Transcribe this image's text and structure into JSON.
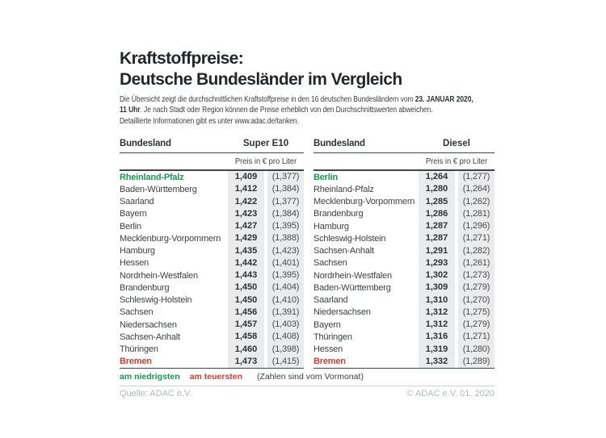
{
  "page": {
    "title_line1": "Kraftstoffpreise:",
    "title_line2": "Deutsche Bundesländer im Vergleich",
    "intro_line1_text": "Die Übersicht zeigt die durchschnittlichen Kraftstoffpreise in den 16 deutschen Bundesländern vom ",
    "intro_line1_bold": "23. JANUAR 2020,",
    "intro_line2_bold": "11 Uhr",
    "intro_line2_text": ". Je nach Stadt oder Region können die Preise erheblich von den Durchschnittswerten abweichen.",
    "intro_line3_text": "Detaillierte Informationen gibt es unter www.adac.de/tanken."
  },
  "colors": {
    "green_cheapest": "#169a4f",
    "red_most_expensive": "#cf4030",
    "column_shading": "#e9ebec",
    "footer_gray": "#b3b9bc"
  },
  "legend": {
    "cheapest_label": "am niedrigsten",
    "most_expensive_label": "am teuersten",
    "note": "(Zahlen sind vom Vormonat)"
  },
  "footer": {
    "source": "Quelle: ADAC e.V.",
    "copyright": "© ADAC e.V. 01. 2020"
  },
  "chart_data": [
    {
      "type": "table",
      "title": "Super E10",
      "state_column_header": "Bundesland",
      "unit_subheader": "Preis in € pro Liter",
      "note": "values in € per liter, parentheses = previous month",
      "rows": [
        {
          "land": "Rheinland-Pfalz",
          "price": "1,409",
          "prev": "(1,377)",
          "highlight": "min"
        },
        {
          "land": "Baden-Württemberg",
          "price": "1,412",
          "prev": "(1,384)"
        },
        {
          "land": "Saarland",
          "price": "1,422",
          "prev": "(1,377)"
        },
        {
          "land": "Bayern",
          "price": "1,423",
          "prev": "(1,384)"
        },
        {
          "land": "Berlin",
          "price": "1,427",
          "prev": "(1,395)"
        },
        {
          "land": "Mecklenburg-Vorpommern",
          "price": "1,429",
          "prev": "(1,388)"
        },
        {
          "land": "Hamburg",
          "price": "1,435",
          "prev": "(1,423)"
        },
        {
          "land": "Hessen",
          "price": "1,442",
          "prev": "(1,401)"
        },
        {
          "land": "Nordrhein-Westfalen",
          "price": "1,443",
          "prev": "(1,395)"
        },
        {
          "land": "Brandenburg",
          "price": "1,450",
          "prev": "(1,404)"
        },
        {
          "land": "Schleswig-Holstein",
          "price": "1,450",
          "prev": "(1,410)"
        },
        {
          "land": "Sachsen",
          "price": "1,456",
          "prev": "(1,391)"
        },
        {
          "land": "Niedersachsen",
          "price": "1,457",
          "prev": "(1,403)"
        },
        {
          "land": "Sachsen-Anhalt",
          "price": "1,458",
          "prev": "(1,408)"
        },
        {
          "land": "Thüringen",
          "price": "1,460",
          "prev": "(1,398)"
        },
        {
          "land": "Bremen",
          "price": "1,473",
          "prev": "(1,415)",
          "highlight": "max"
        }
      ]
    },
    {
      "type": "table",
      "title": "Diesel",
      "state_column_header": "Bundesland",
      "unit_subheader": "Preis in € pro Liter",
      "note": "values in € per liter, parentheses = previous month",
      "rows": [
        {
          "land": "Berlin",
          "price": "1,264",
          "prev": "(1,277)",
          "highlight": "min"
        },
        {
          "land": "Rheinland-Pfalz",
          "price": "1,280",
          "prev": "(1,264)"
        },
        {
          "land": "Mecklenburg-Vorpommern",
          "price": "1,285",
          "prev": "(1,262)"
        },
        {
          "land": "Brandenburg",
          "price": "1,286",
          "prev": "(1,281)"
        },
        {
          "land": "Hamburg",
          "price": "1,287",
          "prev": "(1,296)"
        },
        {
          "land": "Schleswig-Holstein",
          "price": "1,287",
          "prev": "(1,271)"
        },
        {
          "land": "Sachsen-Anhalt",
          "price": "1,291",
          "prev": "(1,282)"
        },
        {
          "land": "Sachsen",
          "price": "1,293",
          "prev": "(1,261)"
        },
        {
          "land": "Nordrhein-Westfalen",
          "price": "1,302",
          "prev": "(1,273)"
        },
        {
          "land": "Baden-Württemberg",
          "price": "1,309",
          "prev": "(1,279)"
        },
        {
          "land": "Saarland",
          "price": "1,310",
          "prev": "(1,270)"
        },
        {
          "land": "Niedersachsen",
          "price": "1,312",
          "prev": "(1,275)"
        },
        {
          "land": "Bayern",
          "price": "1,312",
          "prev": "(1,279)"
        },
        {
          "land": "Thüringen",
          "price": "1,316",
          "prev": "(1,271)"
        },
        {
          "land": "Hessen",
          "price": "1,319",
          "prev": "(1,280)"
        },
        {
          "land": "Bremen",
          "price": "1,332",
          "prev": "(1,289)",
          "highlight": "max"
        }
      ]
    }
  ]
}
